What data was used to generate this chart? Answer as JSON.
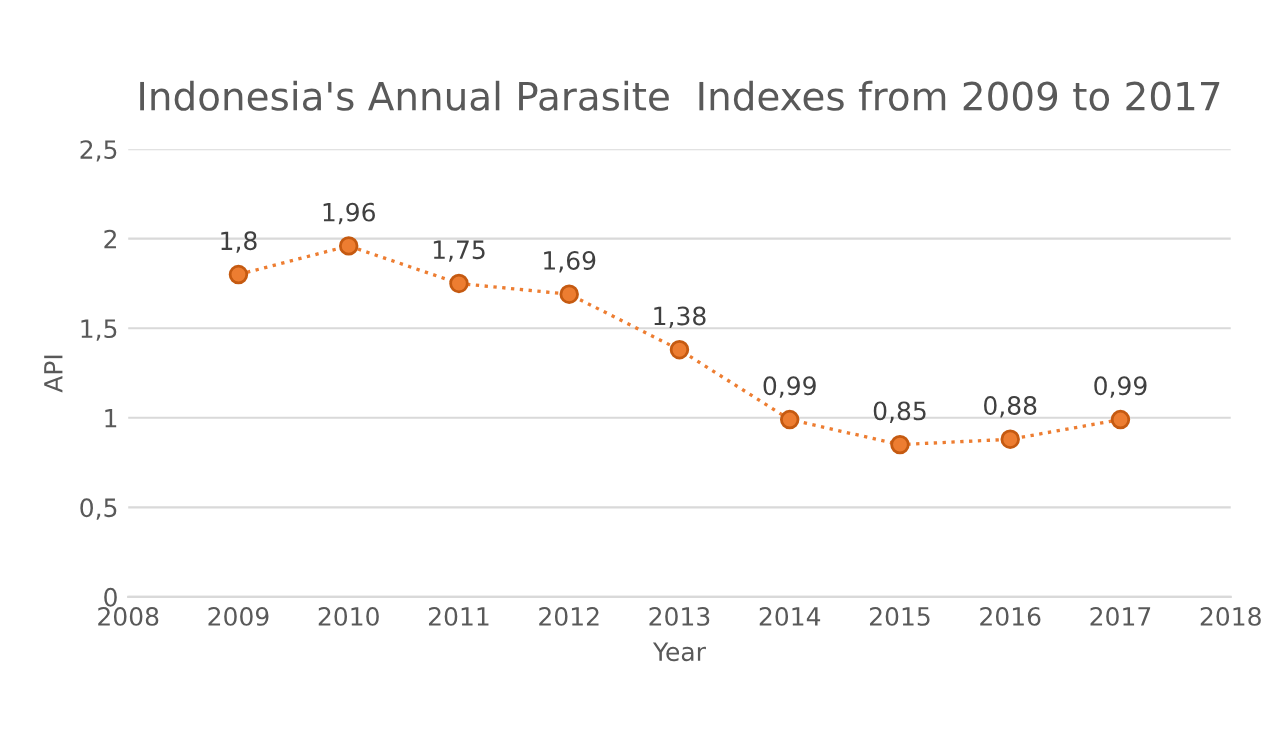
{
  "chart_data": {
    "type": "line",
    "title": "Indonesia's Annual Parasite  Indexes from 2009 to 2017",
    "xlabel": "Year",
    "ylabel": "API",
    "x": [
      2009,
      2010,
      2011,
      2012,
      2013,
      2014,
      2015,
      2016,
      2017
    ],
    "series": [
      {
        "color": "#ed7d31",
        "values": [
          1.8,
          1.96,
          1.75,
          1.69,
          1.38,
          0.99,
          0.85,
          0.88,
          0.99
        ],
        "value_labels": [
          "1,8",
          "1,96",
          "1,75",
          "1,69",
          "1,38",
          "0,99",
          "0,85",
          "0,88",
          "0,99"
        ]
      }
    ],
    "xlim": [
      2008,
      2018
    ],
    "xticks": [
      2008,
      2009,
      2010,
      2011,
      2012,
      2013,
      2014,
      2015,
      2016,
      2017,
      2018
    ],
    "ylim": [
      0,
      2.5
    ],
    "yticks": [
      0,
      {
        "value": 0.5,
        "label": "0,5"
      },
      1,
      {
        "value": 1.5,
        "label": "1,5"
      },
      2,
      {
        "value": 2.5,
        "label": "2,5"
      }
    ],
    "grid": "y",
    "marker": "circle",
    "line_style": "dotted",
    "legend": false
  }
}
